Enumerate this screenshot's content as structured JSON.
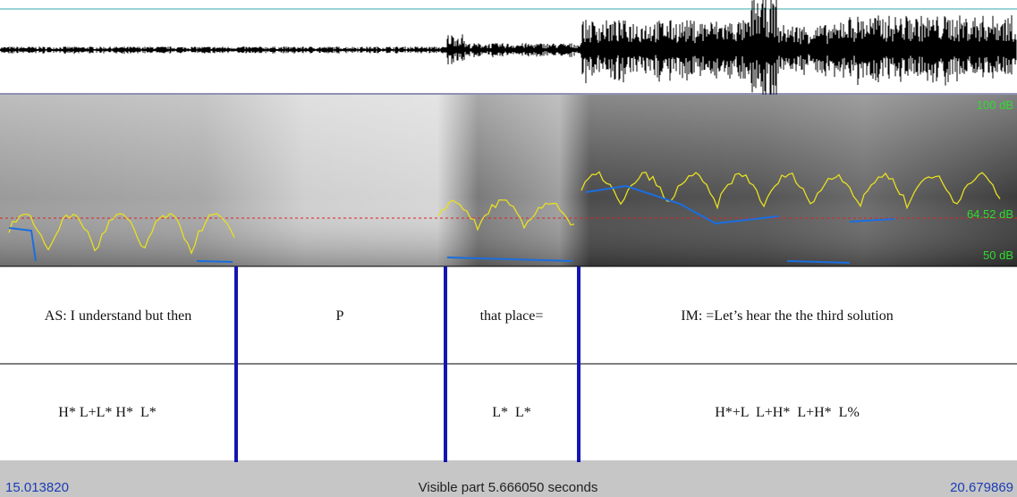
{
  "spectrogram": {
    "top_label": "100 dB",
    "mid_label": "64.52 dB",
    "bottom_label": "50 dB"
  },
  "tiers": [
    {
      "intervals": [
        "AS: I understand but then",
        "P",
        "that place=",
        "IM: =Let’s hear the the third solution"
      ]
    },
    {
      "intervals": [
        "H* L+L* H*  L*",
        "L*  L*",
        "H*+L  L+H*  L+H*  L%"
      ]
    }
  ],
  "footer": {
    "start": "15.013820",
    "visible": "Visible part 5.666050 seconds",
    "end": "20.679869"
  }
}
